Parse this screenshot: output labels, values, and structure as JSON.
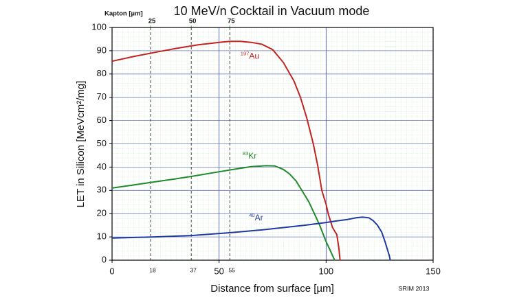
{
  "chart_data": {
    "type": "line",
    "title": "10 MeV/n Cocktail in Vacuum mode",
    "x_label": "Distance from surface [µm]",
    "y_label": "LET in Silicon [MeVcm²/mg]",
    "footer": "SRIM 2013",
    "xlim": [
      0,
      150
    ],
    "xticks": [
      0,
      50,
      100,
      150
    ],
    "ylim": [
      0,
      100
    ],
    "yticks": [
      0,
      10,
      20,
      30,
      40,
      50,
      60,
      70,
      80,
      90,
      100
    ],
    "grid": true,
    "marker_lines": [
      18,
      37,
      55
    ],
    "top_axis": {
      "label": "Kapton [µm]",
      "color": "#33cc33",
      "ticks": [
        {
          "value": 18,
          "label": "25"
        },
        {
          "value": 37,
          "label": "50"
        },
        {
          "value": 55,
          "label": "75"
        }
      ]
    },
    "series": [
      {
        "name": "Au",
        "mass": "197",
        "color": "#c4221f",
        "x": [
          0,
          10,
          20,
          30,
          40,
          50,
          55,
          60,
          65,
          70,
          75,
          80,
          85,
          88,
          91,
          94,
          96,
          98,
          100,
          101,
          103,
          105,
          106,
          106.5
        ],
        "values": [
          85.5,
          87.5,
          89.3,
          91,
          92.5,
          93.6,
          94,
          94,
          93.6,
          92.8,
          90.5,
          85,
          77,
          70,
          61,
          50,
          41,
          30,
          24,
          20,
          14,
          11,
          5,
          0
        ]
      },
      {
        "name": "Kr",
        "mass": "83",
        "color": "#1f8a2a",
        "x": [
          0,
          10,
          18,
          30,
          37,
          50,
          60,
          65,
          72,
          76,
          80,
          83,
          86,
          89,
          92,
          95,
          97,
          100,
          102,
          104
        ],
        "values": [
          31,
          32.3,
          33.4,
          35,
          36,
          38,
          39.5,
          40.2,
          40.6,
          40.5,
          39,
          37,
          34,
          29.5,
          25,
          19,
          15,
          8,
          4,
          0
        ]
      },
      {
        "name": "Ar",
        "mass": "40",
        "color": "#1f3a9f",
        "x": [
          0,
          20,
          37,
          55,
          70,
          80,
          90,
          100,
          105,
          110,
          114,
          117,
          120,
          122,
          124,
          126,
          127.5,
          128.5,
          129.5,
          130
        ],
        "values": [
          9.5,
          10,
          10.6,
          11.8,
          13,
          14,
          15,
          16.2,
          16.9,
          17.5,
          18.2,
          18.5,
          18.2,
          17,
          15,
          12,
          8,
          5,
          2,
          0
        ]
      }
    ]
  }
}
